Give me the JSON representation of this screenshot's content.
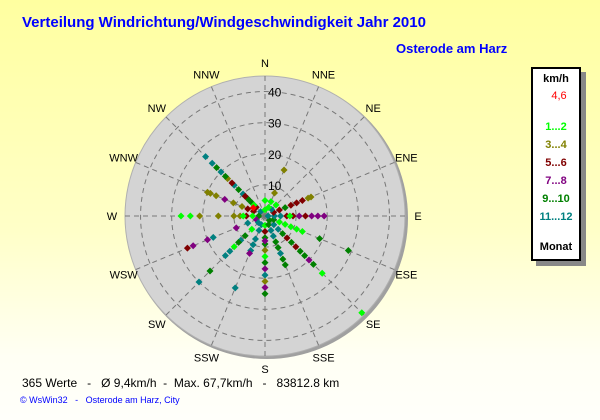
{
  "chart_data": {
    "type": "scatter",
    "subtype": "polar wind rose",
    "title": "Verteilung Windrichtung/Windgeschwindigkeit  Jahr 2010",
    "subtitle": "Osterode am Harz",
    "radial_ticks": [
      10,
      20,
      30,
      40
    ],
    "radial_max": 45,
    "directions": [
      "N",
      "NNE",
      "NE",
      "ENE",
      "E",
      "ESE",
      "SE",
      "SSE",
      "S",
      "SSW",
      "SW",
      "WSW",
      "W",
      "WNW",
      "NW",
      "NNW"
    ],
    "grid": true,
    "legend": {
      "title": "km/h",
      "max_label": "4,6",
      "max_color": "#ff0000",
      "footer": "Monat",
      "placement": "right",
      "groups": [
        {
          "label": "1...2",
          "months": [
            1,
            2
          ],
          "color": "#00ff00"
        },
        {
          "label": "3...4",
          "months": [
            3,
            4
          ],
          "color": "#808000"
        },
        {
          "label": "5...6",
          "months": [
            5,
            6
          ],
          "color": "#800000"
        },
        {
          "label": "7...8",
          "months": [
            7,
            8
          ],
          "color": "#800080"
        },
        {
          "label": "9...10",
          "months": [
            9,
            10
          ],
          "color": "#008000"
        },
        {
          "label": "11...12",
          "months": [
            11,
            12
          ],
          "color": "#008080"
        }
      ]
    },
    "points_fields": [
      "direction_deg",
      "speed_kmh",
      "month"
    ],
    "points": [
      [
        315,
        2,
        11
      ],
      [
        315,
        4,
        5
      ],
      [
        315,
        6,
        9
      ],
      [
        315,
        8,
        9
      ],
      [
        315,
        10,
        11
      ],
      [
        315,
        12,
        9
      ],
      [
        315,
        14,
        11
      ],
      [
        315,
        15,
        5
      ],
      [
        315,
        17,
        3
      ],
      [
        315,
        18,
        9
      ],
      [
        315,
        20,
        11
      ],
      [
        315,
        22,
        9
      ],
      [
        315,
        24,
        11
      ],
      [
        315,
        27,
        11
      ],
      [
        315,
        5,
        1
      ],
      [
        315,
        7,
        9
      ],
      [
        315,
        9,
        5
      ],
      [
        292.5,
        4,
        5
      ],
      [
        292.5,
        8,
        3
      ],
      [
        292.5,
        11,
        3
      ],
      [
        292.5,
        14,
        7
      ],
      [
        292.5,
        17,
        3
      ],
      [
        292.5,
        19,
        3
      ],
      [
        292.5,
        20,
        3
      ],
      [
        292.5,
        6,
        5
      ],
      [
        270,
        2,
        9
      ],
      [
        270,
        4,
        1
      ],
      [
        270,
        6,
        5
      ],
      [
        270,
        8,
        3
      ],
      [
        270,
        10,
        3
      ],
      [
        270,
        15,
        3
      ],
      [
        270,
        21,
        3
      ],
      [
        270,
        24,
        1
      ],
      [
        270,
        27,
        1
      ],
      [
        270,
        7,
        1
      ],
      [
        247.5,
        3,
        7
      ],
      [
        247.5,
        6,
        11
      ],
      [
        247.5,
        10,
        7
      ],
      [
        247.5,
        18,
        11
      ],
      [
        247.5,
        20,
        7
      ],
      [
        247.5,
        27,
        5
      ],
      [
        247.5,
        25,
        7
      ],
      [
        225,
        3,
        11
      ],
      [
        225,
        6,
        1
      ],
      [
        225,
        9,
        9
      ],
      [
        225,
        11,
        11
      ],
      [
        225,
        14,
        1
      ],
      [
        225,
        16,
        11
      ],
      [
        225,
        18,
        11
      ],
      [
        225,
        25,
        9
      ],
      [
        225,
        30,
        11
      ],
      [
        225,
        12,
        9
      ],
      [
        202.5,
        3,
        11
      ],
      [
        202.5,
        5,
        11
      ],
      [
        202.5,
        8,
        11
      ],
      [
        202.5,
        10,
        11
      ],
      [
        202.5,
        12,
        11
      ],
      [
        202.5,
        13,
        7
      ],
      [
        202.5,
        25,
        11
      ],
      [
        180,
        3,
        1
      ],
      [
        180,
        5,
        5
      ],
      [
        180,
        7,
        9
      ],
      [
        180,
        9,
        9
      ],
      [
        180,
        11,
        3
      ],
      [
        180,
        13,
        1
      ],
      [
        180,
        15,
        9
      ],
      [
        180,
        17,
        7
      ],
      [
        180,
        19,
        11
      ],
      [
        180,
        21,
        3
      ],
      [
        180,
        23,
        7
      ],
      [
        180,
        25,
        9
      ],
      [
        180,
        8,
        7
      ],
      [
        157.5,
        3,
        9
      ],
      [
        157.5,
        5,
        11
      ],
      [
        157.5,
        7,
        11
      ],
      [
        157.5,
        9,
        9
      ],
      [
        157.5,
        11,
        9
      ],
      [
        157.5,
        13,
        11
      ],
      [
        157.5,
        15,
        9
      ],
      [
        157.5,
        17,
        9
      ],
      [
        135,
        2,
        9
      ],
      [
        135,
        4,
        11
      ],
      [
        135,
        6,
        11
      ],
      [
        135,
        8,
        9
      ],
      [
        135,
        10,
        5
      ],
      [
        135,
        12,
        9
      ],
      [
        135,
        14,
        5
      ],
      [
        135,
        16,
        9
      ],
      [
        135,
        18,
        9
      ],
      [
        135,
        20,
        7
      ],
      [
        135,
        22,
        9
      ],
      [
        135,
        26,
        1
      ],
      [
        135,
        44,
        1
      ],
      [
        112.5,
        3,
        9
      ],
      [
        112.5,
        5,
        1
      ],
      [
        112.5,
        7,
        1
      ],
      [
        112.5,
        9,
        1
      ],
      [
        112.5,
        11,
        1
      ],
      [
        112.5,
        13,
        1
      ],
      [
        112.5,
        19,
        9
      ],
      [
        112.5,
        29,
        9
      ],
      [
        90,
        1,
        11
      ],
      [
        90,
        3,
        11
      ],
      [
        90,
        5,
        11
      ],
      [
        90,
        7,
        5
      ],
      [
        90,
        9,
        5
      ],
      [
        90,
        11,
        7
      ],
      [
        90,
        13,
        5
      ],
      [
        90,
        15,
        7
      ],
      [
        90,
        17,
        7
      ],
      [
        90,
        19,
        7
      ],
      [
        90,
        8,
        1
      ],
      [
        67.5,
        3,
        5
      ],
      [
        67.5,
        5,
        5
      ],
      [
        67.5,
        7,
        9
      ],
      [
        67.5,
        9,
        5
      ],
      [
        67.5,
        11,
        5
      ],
      [
        67.5,
        13,
        5
      ],
      [
        67.5,
        15,
        3
      ],
      [
        67.5,
        16,
        3
      ],
      [
        45,
        3,
        11
      ],
      [
        45,
        5,
        1
      ],
      [
        22.5,
        3,
        1
      ],
      [
        22.5,
        5,
        1
      ],
      [
        22.5,
        8,
        3
      ],
      [
        22.5,
        16,
        3
      ],
      [
        0,
        2,
        1
      ],
      [
        0,
        5,
        1
      ]
    ],
    "max_point": [
      305,
      4.6
    ]
  },
  "stats": "365 Werte   -   Ø 9,4km/h  -  Max. 67,7km/h   -   83812.8 km",
  "footer": "© WsWin32   -   Osterode am Harz, City"
}
